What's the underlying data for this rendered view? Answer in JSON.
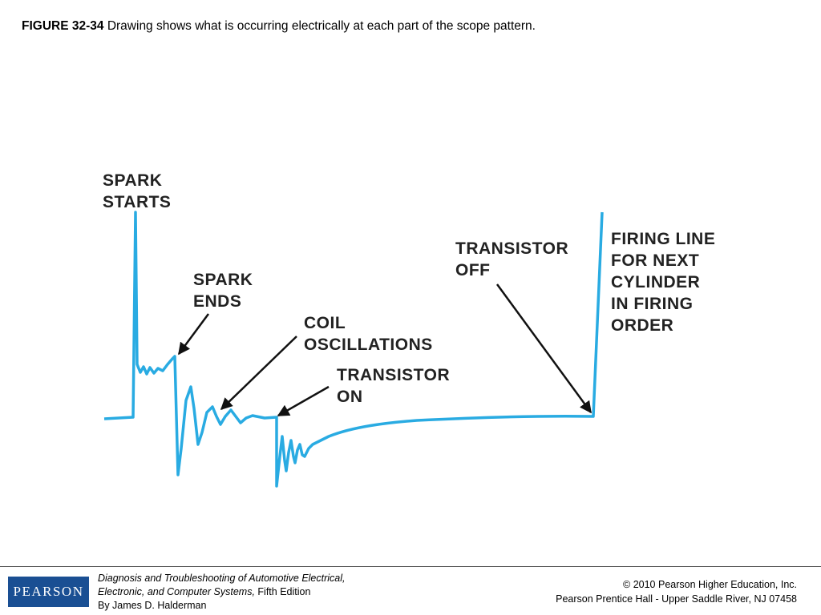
{
  "header": {
    "figure_label": "FIGURE 32-34",
    "caption": "Drawing shows what is occurring electrically at each part of the scope pattern."
  },
  "labels": [
    {
      "lines": [
        "SPARK",
        "STARTS"
      ]
    },
    {
      "lines": [
        "SPARK",
        "ENDS"
      ]
    },
    {
      "lines": [
        "COIL",
        "OSCILLATIONS"
      ]
    },
    {
      "lines": [
        "TRANSISTOR",
        "ON"
      ]
    },
    {
      "lines": [
        "TRANSISTOR",
        "OFF"
      ]
    },
    {
      "lines": [
        "FIRING LINE",
        "FOR NEXT",
        "CYLINDER",
        "IN FIRING",
        "ORDER"
      ]
    }
  ],
  "footer": {
    "logo": "PEARSON",
    "book_lines": [
      "Diagnosis and Troubleshooting of Automotive Electrical,",
      "Electronic, and Computer Systems,"
    ],
    "edition": "Fifth Edition",
    "author": "By James D. Halderman",
    "copyright_lines": [
      "© 2010 Pearson Higher Education, Inc.",
      "Pearson Prentice Hall - Upper Saddle River, NJ 07458"
    ]
  }
}
